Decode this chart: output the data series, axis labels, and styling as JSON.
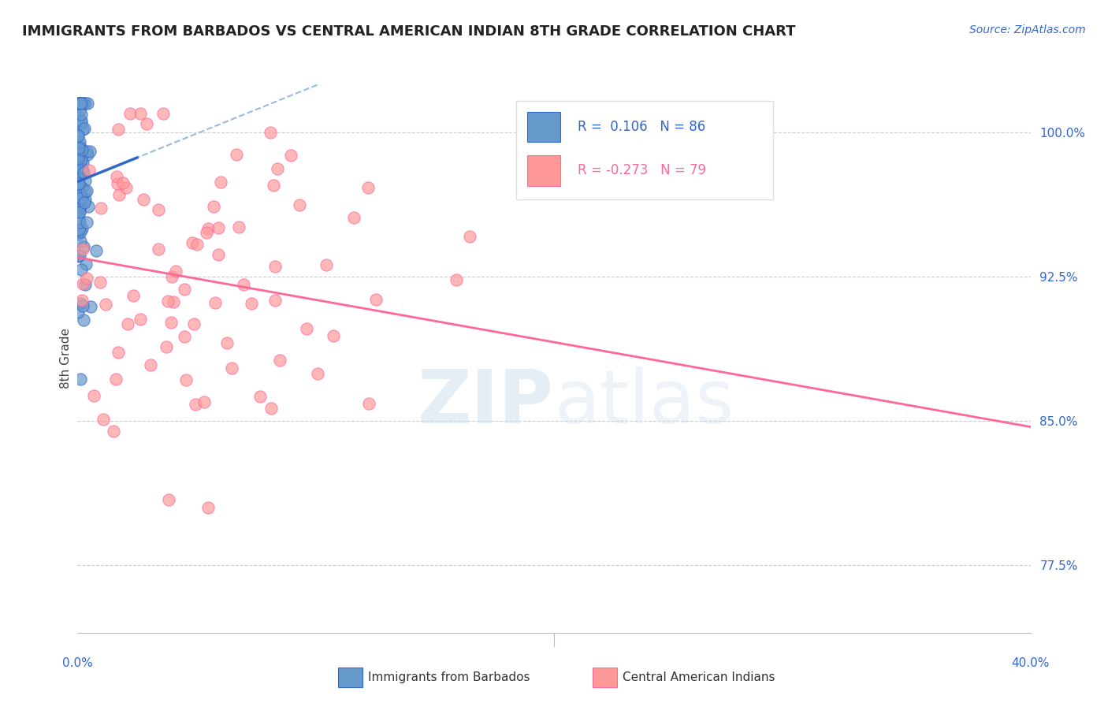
{
  "title": "IMMIGRANTS FROM BARBADOS VS CENTRAL AMERICAN INDIAN 8TH GRADE CORRELATION CHART",
  "source": "Source: ZipAtlas.com",
  "ylabel": "8th Grade",
  "y_ticks": [
    77.5,
    85.0,
    92.5,
    100.0
  ],
  "y_tick_labels": [
    "77.5%",
    "85.0%",
    "92.5%",
    "100.0%"
  ],
  "xlim": [
    0.0,
    40.0
  ],
  "ylim": [
    74.0,
    102.5
  ],
  "R_blue": 0.106,
  "N_blue": 86,
  "R_pink": -0.273,
  "N_pink": 79,
  "blue_color": "#6699CC",
  "pink_color": "#FF9999",
  "blue_line_color": "#3366CC",
  "pink_line_color": "#FF6699",
  "dashed_line_color": "#99BBDD",
  "watermark_color": "#CCDDED",
  "background_color": "#FFFFFF",
  "title_fontsize": 13,
  "scatter_size": 120
}
